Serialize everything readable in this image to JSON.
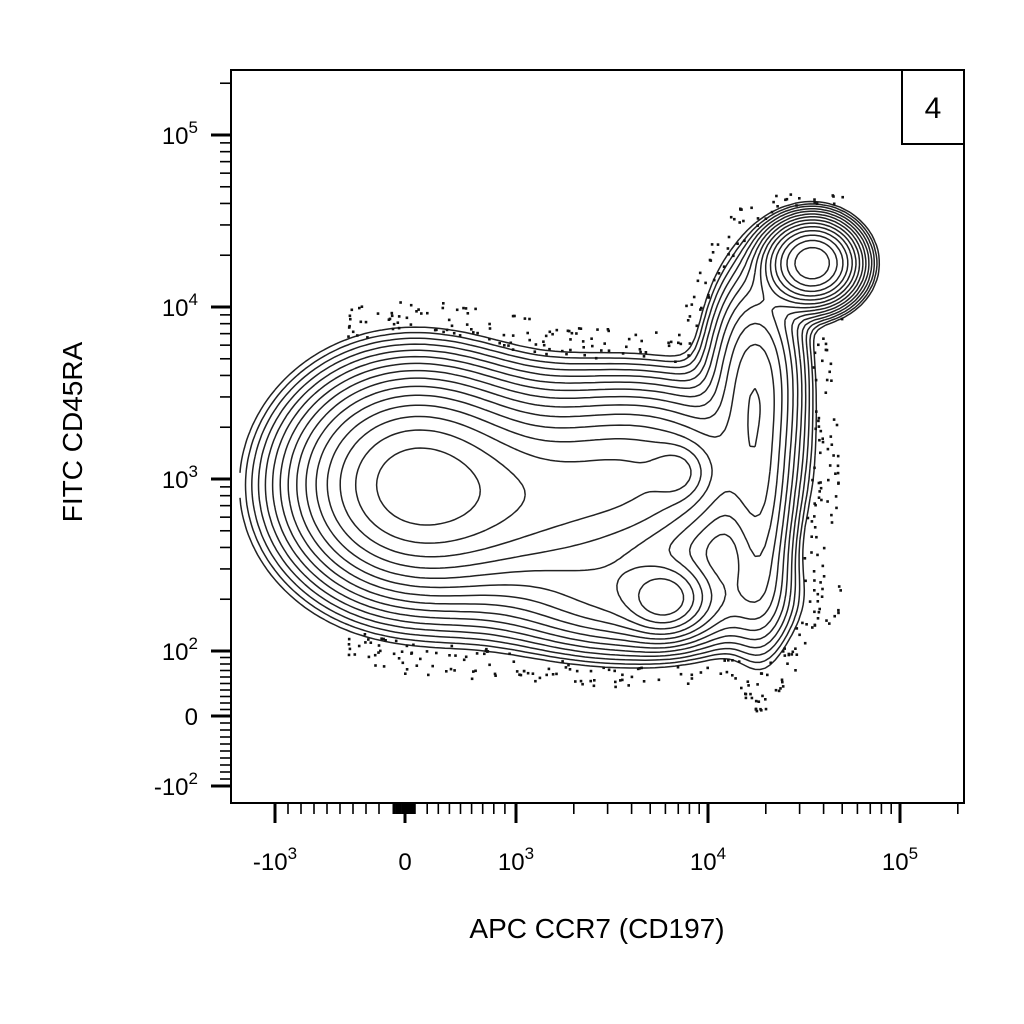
{
  "chart_data": {
    "type": "contour",
    "panel_label": "4",
    "xlabel": "APC CCR7 (CD197)",
    "ylabel": "FITC CD45RA",
    "x_scale": "biexponential",
    "y_scale": "biexponential",
    "xlim": [
      -2000,
      200000
    ],
    "ylim": [
      -200,
      200000
    ],
    "x_ticks": [
      {
        "value": -1000,
        "base": "-10",
        "exp": "3"
      },
      {
        "value": 0,
        "base": "0",
        "exp": ""
      },
      {
        "value": 1000,
        "base": "10",
        "exp": "3"
      },
      {
        "value": 10000,
        "base": "10",
        "exp": "4"
      },
      {
        "value": 100000,
        "base": "10",
        "exp": "5"
      }
    ],
    "y_ticks": [
      {
        "value": -100,
        "base": "-10",
        "exp": "2"
      },
      {
        "value": 0,
        "base": "0",
        "exp": ""
      },
      {
        "value": 100,
        "base": "10",
        "exp": "2"
      },
      {
        "value": 1000,
        "base": "10",
        "exp": "3"
      },
      {
        "value": 10000,
        "base": "10",
        "exp": "4"
      },
      {
        "value": 100000,
        "base": "10",
        "exp": "5"
      }
    ],
    "populations": [
      {
        "center_x": 50,
        "center_y": 950,
        "relative_density": 1.0
      },
      {
        "center_x": 35000,
        "center_y": 18000,
        "relative_density": 0.95
      },
      {
        "center_x": 6000,
        "center_y": 200,
        "relative_density": 0.3
      },
      {
        "center_x": 7000,
        "center_y": 1100,
        "relative_density": 0.25
      }
    ],
    "grid": false,
    "legend": "none"
  }
}
